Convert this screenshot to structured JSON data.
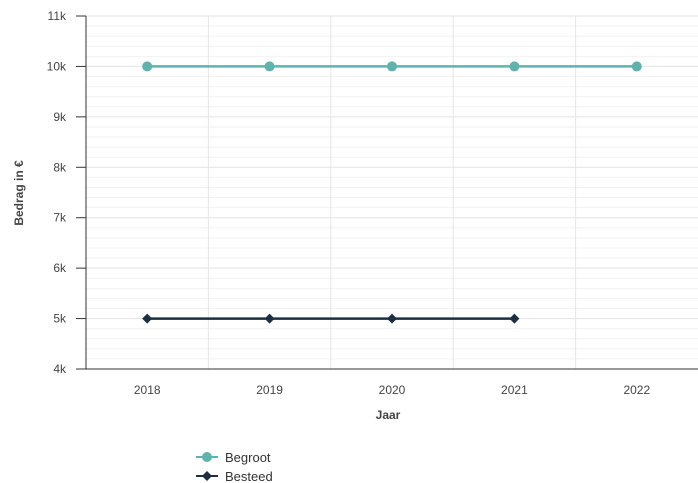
{
  "chart_data": {
    "type": "line",
    "xlabel": "Jaar",
    "ylabel": "Bedrag in €",
    "categories": [
      "2018",
      "2019",
      "2020",
      "2021",
      "2022"
    ],
    "ylim": [
      4000,
      11000
    ],
    "yticks": [
      {
        "value": 4000,
        "label": "4k"
      },
      {
        "value": 5000,
        "label": "5k"
      },
      {
        "value": 6000,
        "label": "6k"
      },
      {
        "value": 7000,
        "label": "7k"
      },
      {
        "value": 8000,
        "label": "8k"
      },
      {
        "value": 9000,
        "label": "9k"
      },
      {
        "value": 10000,
        "label": "10k"
      },
      {
        "value": 11000,
        "label": "11k"
      }
    ],
    "grid": true,
    "legend_position": "bottom-left",
    "series": [
      {
        "name": "Begroot",
        "color": "#5fb3ad",
        "marker": "circle",
        "values": [
          10000,
          10000,
          10000,
          10000,
          10000
        ]
      },
      {
        "name": "Besteed",
        "color": "#1a2e44",
        "marker": "diamond",
        "values": [
          5000,
          5000,
          5000,
          5000,
          null
        ]
      }
    ]
  }
}
